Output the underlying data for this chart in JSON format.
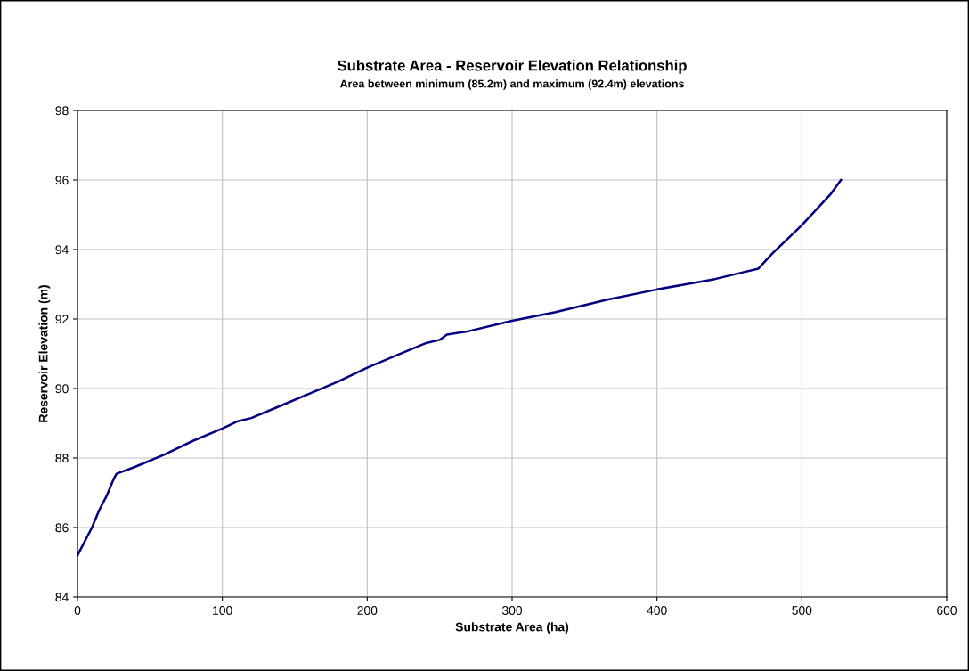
{
  "chart_data": {
    "type": "line",
    "title": "Substrate Area - Reservoir Elevation Relationship",
    "subtitle": "Area between minimum (85.2m) and maximum (92.4m) elevations",
    "xlabel": "Substrate Area (ha)",
    "ylabel": "Reservoir Elevation (m)",
    "series": [
      {
        "color": "#000080",
        "x": [
          0,
          5,
          10,
          15,
          20,
          25,
          27,
          40,
          60,
          80,
          100,
          110,
          120,
          140,
          160,
          180,
          200,
          220,
          240,
          250,
          255,
          270,
          300,
          330,
          355,
          365,
          400,
          440,
          460,
          470,
          480,
          500,
          520,
          527
        ],
        "values": [
          85.2,
          85.6,
          86.0,
          86.5,
          86.9,
          87.4,
          87.55,
          87.75,
          88.1,
          88.5,
          88.85,
          89.05,
          89.15,
          89.5,
          89.85,
          90.2,
          90.6,
          90.95,
          91.3,
          91.4,
          91.55,
          91.65,
          91.95,
          92.2,
          92.45,
          92.55,
          92.85,
          93.15,
          93.35,
          93.45,
          93.9,
          94.7,
          95.6,
          96.0
        ]
      }
    ],
    "xlim": [
      0,
      600
    ],
    "xticks": [
      0,
      100,
      200,
      300,
      400,
      500,
      600
    ],
    "ylim": [
      84,
      98
    ],
    "yticks": [
      84,
      86,
      88,
      90,
      92,
      94,
      96,
      98
    ],
    "grid": true,
    "marker": "none",
    "line_style": "solid"
  }
}
